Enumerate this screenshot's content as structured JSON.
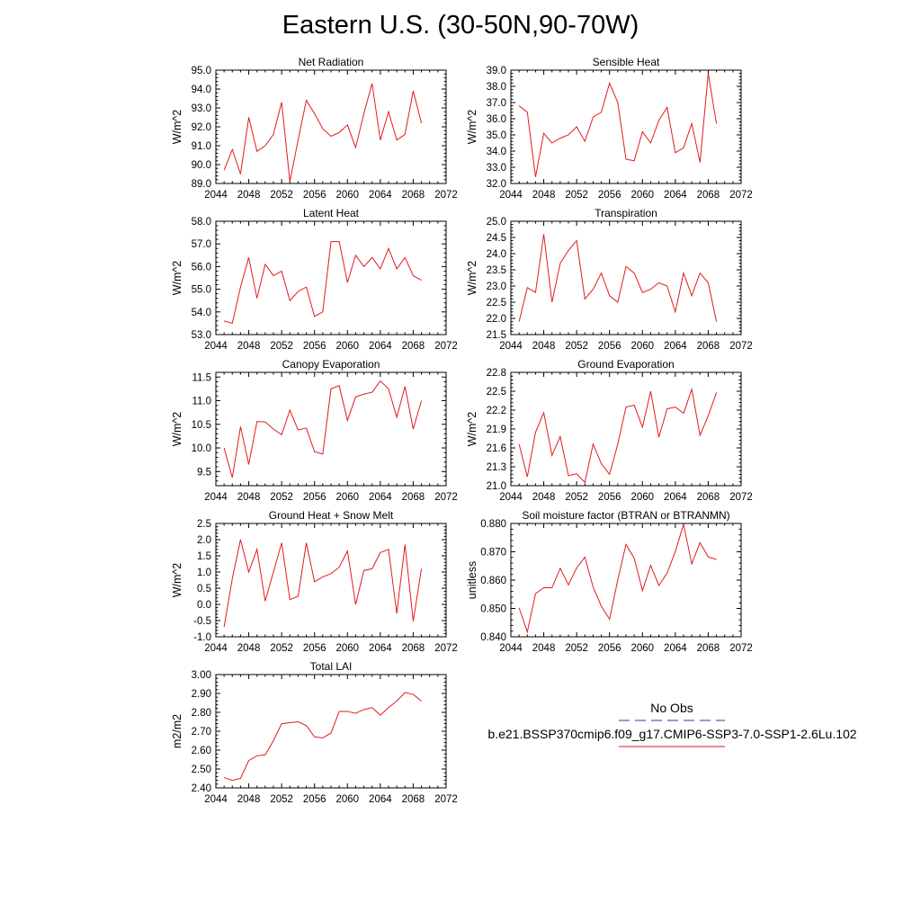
{
  "title": "Eastern U.S. (30-50N,90-70W)",
  "legend": {
    "obs_label": "No Obs",
    "model_label": "b.e21.BSSP370cmip6.f09_g17.CMIP6-SSP3-7.0-SSP1-2.6Lu.102",
    "obs_color": "#3333aa",
    "model_color": "#e31a1c"
  },
  "chart_data": [
    {
      "type": "line",
      "title": "Net Radiation",
      "ylabel": "W/m^2",
      "xlim": [
        2044,
        2072
      ],
      "ylim": [
        89.0,
        95.0
      ],
      "xticks": [
        2044,
        2048,
        2052,
        2056,
        2060,
        2064,
        2068,
        2072
      ],
      "yticks": [
        "89.0",
        "90.0",
        "91.0",
        "92.0",
        "93.0",
        "94.0",
        "95.0"
      ],
      "series": [
        {
          "color": "#e31a1c",
          "x": [
            2045,
            2046,
            2047,
            2048,
            2049,
            2050,
            2051,
            2052,
            2053,
            2054,
            2055,
            2056,
            2057,
            2058,
            2059,
            2060,
            2061,
            2062,
            2063,
            2064,
            2065,
            2066,
            2067,
            2068,
            2069
          ],
          "values": [
            89.7,
            90.8,
            89.5,
            92.5,
            90.7,
            91.0,
            91.6,
            93.3,
            89.1,
            91.3,
            93.4,
            92.7,
            91.9,
            91.5,
            91.7,
            92.1,
            90.9,
            92.7,
            94.3,
            91.3,
            92.8,
            91.3,
            91.6,
            93.9,
            92.2
          ]
        }
      ]
    },
    {
      "type": "line",
      "title": "Sensible Heat",
      "ylabel": "W/m^2",
      "xlim": [
        2044,
        2072
      ],
      "ylim": [
        32.0,
        39.0
      ],
      "xticks": [
        2044,
        2048,
        2052,
        2056,
        2060,
        2064,
        2068,
        2072
      ],
      "yticks": [
        "32.0",
        "33.0",
        "34.0",
        "35.0",
        "36.0",
        "37.0",
        "38.0",
        "39.0"
      ],
      "series": [
        {
          "color": "#e31a1c",
          "x": [
            2045,
            2046,
            2047,
            2048,
            2049,
            2050,
            2051,
            2052,
            2053,
            2054,
            2055,
            2056,
            2057,
            2058,
            2059,
            2060,
            2061,
            2062,
            2063,
            2064,
            2065,
            2066,
            2067,
            2068,
            2069
          ],
          "values": [
            36.8,
            36.4,
            32.4,
            35.1,
            34.5,
            34.8,
            35.0,
            35.5,
            34.6,
            36.1,
            36.4,
            38.2,
            37.0,
            33.5,
            33.4,
            35.2,
            34.5,
            35.9,
            36.7,
            33.9,
            34.2,
            35.7,
            33.3,
            38.8,
            35.7
          ]
        }
      ]
    },
    {
      "type": "line",
      "title": "Latent Heat",
      "ylabel": "W/m^2",
      "xlim": [
        2044,
        2072
      ],
      "ylim": [
        53.0,
        58.0
      ],
      "xticks": [
        2044,
        2048,
        2052,
        2056,
        2060,
        2064,
        2068,
        2072
      ],
      "yticks": [
        "53.0",
        "54.0",
        "55.0",
        "56.0",
        "57.0",
        "58.0"
      ],
      "series": [
        {
          "color": "#e31a1c",
          "x": [
            2045,
            2046,
            2047,
            2048,
            2049,
            2050,
            2051,
            2052,
            2053,
            2054,
            2055,
            2056,
            2057,
            2058,
            2059,
            2060,
            2061,
            2062,
            2063,
            2064,
            2065,
            2066,
            2067,
            2068,
            2069
          ],
          "values": [
            53.6,
            53.5,
            55.1,
            56.4,
            54.6,
            56.1,
            55.6,
            55.8,
            54.5,
            54.9,
            55.1,
            53.8,
            54.0,
            57.1,
            57.1,
            55.3,
            56.5,
            56.0,
            56.4,
            55.9,
            56.8,
            55.9,
            56.4,
            55.6,
            55.4
          ]
        }
      ]
    },
    {
      "type": "line",
      "title": "Transpiration",
      "ylabel": "W/m^2",
      "xlim": [
        2044,
        2072
      ],
      "ylim": [
        21.5,
        25.0
      ],
      "xticks": [
        2044,
        2048,
        2052,
        2056,
        2060,
        2064,
        2068,
        2072
      ],
      "yticks": [
        "21.5",
        "22.0",
        "22.5",
        "23.0",
        "23.5",
        "24.0",
        "24.5",
        "25.0"
      ],
      "series": [
        {
          "color": "#e31a1c",
          "x": [
            2045,
            2046,
            2047,
            2048,
            2049,
            2050,
            2051,
            2052,
            2053,
            2054,
            2055,
            2056,
            2057,
            2058,
            2059,
            2060,
            2061,
            2062,
            2063,
            2064,
            2065,
            2066,
            2067,
            2068,
            2069
          ],
          "values": [
            21.9,
            22.95,
            22.8,
            24.6,
            22.5,
            23.7,
            24.1,
            24.4,
            22.6,
            22.9,
            23.4,
            22.7,
            22.5,
            23.6,
            23.4,
            22.8,
            22.9,
            23.1,
            23.0,
            22.2,
            23.4,
            22.7,
            23.4,
            23.1,
            21.9
          ]
        }
      ]
    },
    {
      "type": "line",
      "title": "Canopy Evaporation",
      "ylabel": "W/m^2",
      "xlim": [
        2044,
        2072
      ],
      "ylim": [
        9.2,
        11.6
      ],
      "xticks": [
        2044,
        2048,
        2052,
        2056,
        2060,
        2064,
        2068,
        2072
      ],
      "yticks": [
        "9.5",
        "10.0",
        "10.5",
        "11.0",
        "11.5"
      ],
      "series": [
        {
          "color": "#e31a1c",
          "x": [
            2045,
            2046,
            2047,
            2048,
            2049,
            2050,
            2051,
            2052,
            2053,
            2054,
            2055,
            2056,
            2057,
            2058,
            2059,
            2060,
            2061,
            2062,
            2063,
            2064,
            2065,
            2066,
            2067,
            2068,
            2069
          ],
          "values": [
            10.0,
            9.37,
            10.45,
            9.65,
            10.56,
            10.55,
            10.4,
            10.28,
            10.8,
            10.38,
            10.42,
            9.92,
            9.87,
            11.25,
            11.32,
            10.58,
            11.08,
            11.14,
            11.18,
            11.42,
            11.25,
            10.65,
            11.3,
            10.4,
            11.0
          ]
        }
      ]
    },
    {
      "type": "line",
      "title": "Ground Evaporation",
      "ylabel": "W/m^2",
      "xlim": [
        2044,
        2072
      ],
      "ylim": [
        21.0,
        22.8
      ],
      "xticks": [
        2044,
        2048,
        2052,
        2056,
        2060,
        2064,
        2068,
        2072
      ],
      "yticks": [
        "21.0",
        "21.3",
        "21.6",
        "21.9",
        "22.2",
        "22.5",
        "22.8"
      ],
      "series": [
        {
          "color": "#e31a1c",
          "x": [
            2045,
            2046,
            2047,
            2048,
            2049,
            2050,
            2051,
            2052,
            2053,
            2054,
            2055,
            2056,
            2057,
            2058,
            2059,
            2060,
            2061,
            2062,
            2063,
            2064,
            2065,
            2066,
            2067,
            2068,
            2069
          ],
          "values": [
            21.66,
            21.14,
            21.85,
            22.16,
            21.48,
            21.78,
            21.16,
            21.19,
            21.05,
            21.66,
            21.35,
            21.18,
            21.66,
            22.25,
            22.28,
            21.93,
            22.5,
            21.77,
            22.22,
            22.25,
            22.15,
            22.53,
            21.8,
            22.11,
            22.48
          ]
        }
      ]
    },
    {
      "type": "line",
      "title": "Ground Heat + Snow Melt",
      "ylabel": "W/m^2",
      "xlim": [
        2044,
        2072
      ],
      "ylim": [
        -1.0,
        2.5
      ],
      "xticks": [
        2044,
        2048,
        2052,
        2056,
        2060,
        2064,
        2068,
        2072
      ],
      "yticks": [
        "-1.0",
        "-0.5",
        "0.0",
        "0.5",
        "1.0",
        "1.5",
        "2.0",
        "2.5"
      ],
      "series": [
        {
          "color": "#e31a1c",
          "x": [
            2045,
            2046,
            2047,
            2048,
            2049,
            2050,
            2051,
            2052,
            2053,
            2054,
            2055,
            2056,
            2057,
            2058,
            2059,
            2060,
            2061,
            2062,
            2063,
            2064,
            2065,
            2066,
            2067,
            2068,
            2069
          ],
          "values": [
            -0.7,
            0.8,
            2.0,
            1.0,
            1.7,
            0.1,
            1.0,
            1.9,
            0.15,
            0.25,
            1.9,
            0.7,
            0.85,
            0.95,
            1.15,
            1.65,
            0.0,
            1.05,
            1.1,
            1.6,
            1.7,
            -0.28,
            1.85,
            -0.52,
            1.1
          ]
        }
      ]
    },
    {
      "type": "line",
      "title": "Soil moisture factor (BTRAN or BTRANMN)",
      "ylabel": "unitless",
      "xlim": [
        2044,
        2072
      ],
      "ylim": [
        0.84,
        0.88
      ],
      "xticks": [
        2044,
        2048,
        2052,
        2056,
        2060,
        2064,
        2068,
        2072
      ],
      "yticks": [
        "0.840",
        "0.850",
        "0.860",
        "0.870",
        "0.880"
      ],
      "series": [
        {
          "color": "#e31a1c",
          "x": [
            2045,
            2046,
            2047,
            2048,
            2049,
            2050,
            2051,
            2052,
            2053,
            2054,
            2055,
            2056,
            2057,
            2058,
            2059,
            2060,
            2061,
            2062,
            2063,
            2064,
            2065,
            2066,
            2067,
            2068,
            2069
          ],
          "values": [
            0.8502,
            0.8417,
            0.8552,
            0.8573,
            0.8573,
            0.8642,
            0.8583,
            0.8643,
            0.8681,
            0.8576,
            0.8508,
            0.8462,
            0.8601,
            0.8726,
            0.8677,
            0.8563,
            0.8652,
            0.8581,
            0.8625,
            0.8701,
            0.8797,
            0.8657,
            0.8732,
            0.8682,
            0.8673
          ]
        }
      ]
    },
    {
      "type": "line",
      "title": "Total LAI",
      "ylabel": "m2/m2",
      "xlim": [
        2044,
        2072
      ],
      "ylim": [
        2.4,
        3.0
      ],
      "xticks": [
        2044,
        2048,
        2052,
        2056,
        2060,
        2064,
        2068,
        2072
      ],
      "yticks": [
        "2.40",
        "2.50",
        "2.60",
        "2.70",
        "2.80",
        "2.90",
        "3.00"
      ],
      "series": [
        {
          "color": "#e31a1c",
          "x": [
            2045,
            2046,
            2047,
            2048,
            2049,
            2050,
            2051,
            2052,
            2053,
            2054,
            2055,
            2056,
            2057,
            2058,
            2059,
            2060,
            2061,
            2062,
            2063,
            2064,
            2065,
            2066,
            2067,
            2068,
            2069
          ],
          "values": [
            2.455,
            2.44,
            2.45,
            2.545,
            2.57,
            2.575,
            2.65,
            2.74,
            2.745,
            2.75,
            2.73,
            2.67,
            2.665,
            2.69,
            2.805,
            2.805,
            2.795,
            2.815,
            2.825,
            2.785,
            2.825,
            2.86,
            2.905,
            2.895,
            2.86
          ]
        }
      ]
    }
  ]
}
